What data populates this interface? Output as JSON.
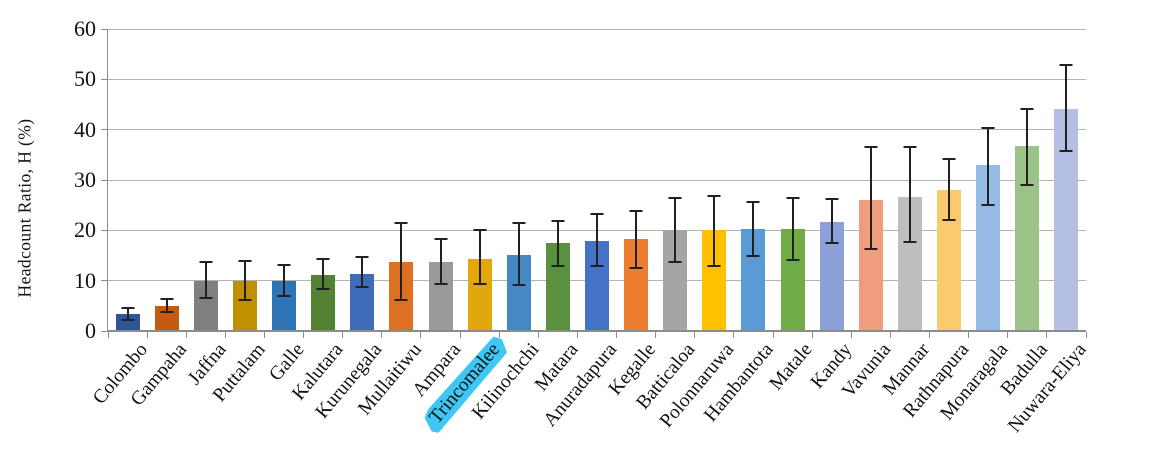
{
  "chart_data": {
    "type": "bar",
    "title": "",
    "xlabel": "",
    "ylabel": "Headcount Ratio, H (%)",
    "ylim": [
      0,
      60
    ],
    "yticks": [
      0,
      10,
      20,
      30,
      40,
      50,
      60
    ],
    "grid": "horizontal",
    "legend": "none",
    "error_bars": true,
    "categories": [
      "Colombo",
      "Gampaha",
      "Jaffna",
      "Puttalam",
      "Galle",
      "Kalutara",
      "Kurunegala",
      "Mullaitiwu",
      "Ampara",
      "Trincomalee",
      "Kilinochchi",
      "Matara",
      "Anuradapura",
      "Kegalle",
      "Batticaloa",
      "Polonnaruwa",
      "Hambantota",
      "Matale",
      "Kandy",
      "Vavunia",
      "Mannar",
      "Rathnapura",
      "Monaragala",
      "Badulla",
      "Nuwara-Eliya"
    ],
    "values": [
      3.4,
      5.0,
      10.0,
      10.0,
      10.0,
      11.2,
      11.4,
      13.7,
      13.7,
      14.3,
      15.1,
      17.5,
      17.9,
      18.2,
      20.1,
      20.1,
      20.3,
      20.2,
      21.7,
      26.0,
      26.6,
      28.0,
      32.9,
      36.7,
      44.2
    ],
    "error_low": [
      2.2,
      3.8,
      6.6,
      6.2,
      7.0,
      8.3,
      8.7,
      6.2,
      9.3,
      9.3,
      9.1,
      12.9,
      12.9,
      12.5,
      13.7,
      12.9,
      14.9,
      14.2,
      17.5,
      16.3,
      17.7,
      22.1,
      25.1,
      29.1,
      35.8
    ],
    "error_high": [
      4.6,
      6.4,
      13.7,
      13.9,
      13.1,
      14.3,
      14.7,
      21.5,
      18.3,
      20.1,
      21.5,
      21.9,
      23.3,
      23.8,
      26.5,
      26.9,
      25.7,
      26.5,
      26.2,
      36.6,
      36.6,
      34.2,
      40.4,
      44.2,
      52.9
    ],
    "bar_colors": [
      "#2F5597",
      "#C55A11",
      "#7F7F7F",
      "#BF9000",
      "#2E75B6",
      "#548235",
      "#3E6CB8",
      "#DE7023",
      "#9A9A9A",
      "#E2A70B",
      "#4489C4",
      "#5A9140",
      "#4472C4",
      "#ED7D31",
      "#A5A5A5",
      "#FFC000",
      "#5B9BD5",
      "#70AD47",
      "#8B9FD8",
      "#EF9D7D",
      "#BEBEBE",
      "#FBCA6D",
      "#94BCE4",
      "#9CC387",
      "#B5BFE3"
    ],
    "highlighted_category": "Trincomalee",
    "highlight_color": "#3EC7F3",
    "axis_color": "#8C8C8C",
    "gridline_color": "#B3B3B3",
    "errorbar_color": "#212121"
  }
}
